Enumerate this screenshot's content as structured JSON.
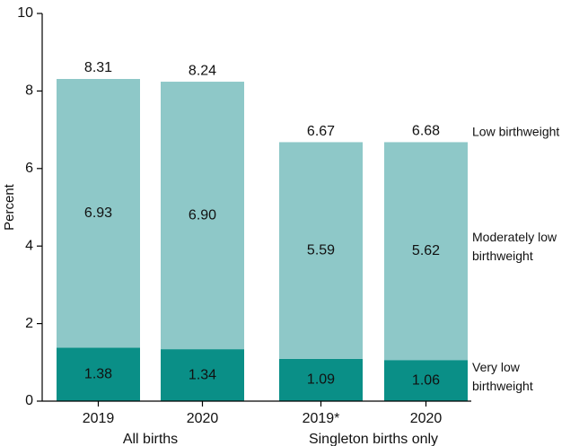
{
  "chart_data": {
    "type": "bar",
    "stacked": true,
    "title": "",
    "xlabel": "",
    "ylabel": "Percent",
    "ylim": [
      0,
      10
    ],
    "yticks": [
      0,
      2,
      4,
      6,
      8,
      10
    ],
    "grid": false,
    "categories": [
      "2019",
      "2020",
      "2019*",
      "2020"
    ],
    "groups": [
      {
        "label": "All births",
        "category_indices": [
          0,
          1
        ]
      },
      {
        "label": "Singleton births only",
        "category_indices": [
          2,
          3
        ]
      }
    ],
    "series": [
      {
        "name": "Very low birthweight",
        "color": "#0a8f87",
        "values": [
          1.38,
          1.34,
          1.09,
          1.06
        ],
        "labels": [
          "1.38",
          "1.34",
          "1.09",
          "1.06"
        ]
      },
      {
        "name": "Moderately low birthweight",
        "color": "#8ec8c8",
        "values": [
          6.93,
          6.9,
          5.59,
          5.62
        ],
        "labels": [
          "6.93",
          "6.90",
          "5.59",
          "5.62"
        ]
      }
    ],
    "totals": {
      "name": "Low birthweight",
      "values": [
        8.31,
        8.24,
        6.67,
        6.68
      ],
      "labels": [
        "8.31",
        "8.24",
        "6.67",
        "6.68"
      ]
    },
    "legend_placement": "right, aligned with bar segments",
    "legend_lines": [
      {
        "series": "Low birthweight",
        "lines": [
          "Low birthweight"
        ]
      },
      {
        "series": "Moderately low birthweight",
        "lines": [
          "Moderately low",
          "birthweight"
        ]
      },
      {
        "series": "Very low birthweight",
        "lines": [
          "Very low",
          "birthweight"
        ]
      }
    ]
  }
}
